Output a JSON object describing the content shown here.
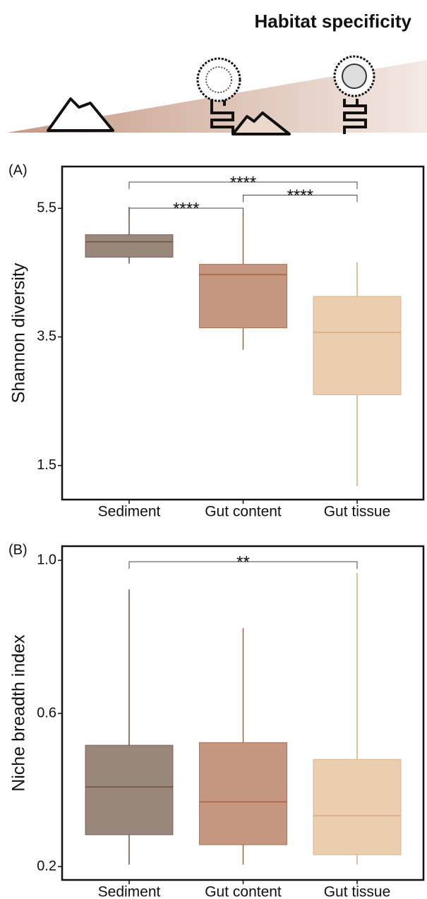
{
  "header": {
    "title": "Habitat specificity"
  },
  "chart_data": [
    {
      "type": "box",
      "panel_label": "(A)",
      "ylabel": "Shannon diversity",
      "categories": [
        "Sediment",
        "Gut content",
        "Gut tissue"
      ],
      "whisker_low": [
        4.64,
        3.3,
        1.18
      ],
      "q1": [
        4.74,
        3.64,
        2.6
      ],
      "median": [
        4.98,
        4.47,
        3.57
      ],
      "q3": [
        5.09,
        4.63,
        4.13
      ],
      "whisker_high": [
        5.52,
        5.42,
        4.66
      ],
      "colors": [
        "#8f7a6e",
        "#bf8c72",
        "#e8c9a6"
      ],
      "edge_colors": [
        "#6e4f40",
        "#a5603f",
        "#d9a878"
      ],
      "ylim": [
        0.97,
        6.15
      ],
      "yticks": [
        5.5,
        3.5,
        1.5
      ],
      "annotations": [
        {
          "label": "****",
          "from": 0,
          "to": 2
        },
        {
          "label": "****",
          "from": 1,
          "to": 2
        },
        {
          "label": "****",
          "from": 0,
          "to": 1
        }
      ]
    },
    {
      "type": "box",
      "panel_label": "(B)",
      "ylabel": "Niche breadth index",
      "categories": [
        "Sediment",
        "Gut content",
        "Gut tissue"
      ],
      "whisker_low": [
        0.205,
        0.205,
        0.205
      ],
      "q1": [
        0.283,
        0.257,
        0.231
      ],
      "median": [
        0.408,
        0.369,
        0.333
      ],
      "q3": [
        0.517,
        0.524,
        0.48
      ],
      "whisker_high": [
        0.924,
        0.823,
        0.967
      ],
      "colors": [
        "#8f7a6e",
        "#bf8c72",
        "#e8c9a6"
      ],
      "edge_colors": [
        "#6e4f40",
        "#a5603f",
        "#d9a878"
      ],
      "ylim": [
        0.165,
        1.037
      ],
      "yticks": [
        {
          "value": 1,
          "label": "1.0"
        },
        0.6,
        0.2
      ],
      "annotations": [
        {
          "label": "**",
          "from": 0,
          "to": 2
        }
      ]
    }
  ]
}
